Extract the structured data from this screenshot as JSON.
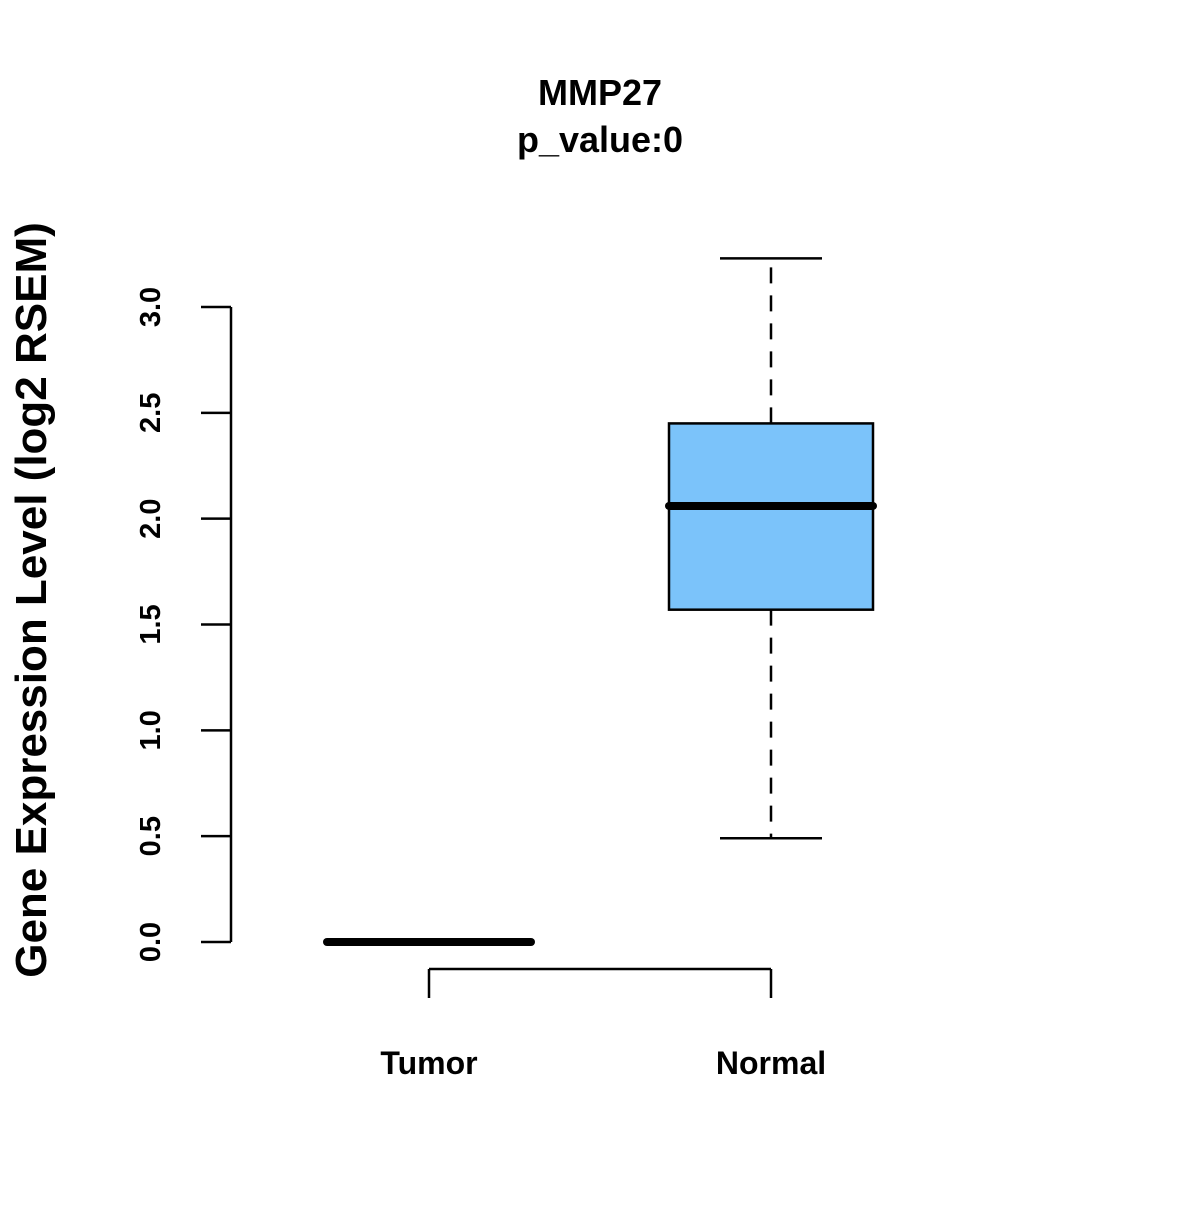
{
  "chart_data": {
    "type": "box",
    "title": "MMP27",
    "subtitle": "p_value:0",
    "ylabel": "Gene Expression Level (log2 RSEM)",
    "xlabel": "",
    "categories": [
      "Tumor",
      "Normal"
    ],
    "ylim": [
      0,
      3.0
    ],
    "yticks": [
      "0.0",
      "0.5",
      "1.0",
      "1.5",
      "2.0",
      "2.5",
      "3.0"
    ],
    "grid": false,
    "boxes": [
      {
        "category": "Tumor",
        "min": 0.0,
        "q1": 0.0,
        "median": 0.0,
        "q3": 0.0,
        "max": 0.0
      },
      {
        "category": "Normal",
        "min": 0.49,
        "q1": 1.57,
        "median": 2.06,
        "q3": 2.45,
        "max": 3.23
      }
    ],
    "colors": {
      "box_fill": "#7bc3fa",
      "line": "#000000"
    }
  }
}
